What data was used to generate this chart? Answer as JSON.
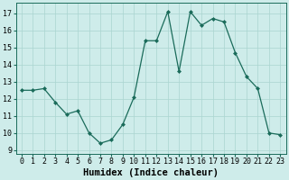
{
  "x": [
    0,
    1,
    2,
    3,
    4,
    5,
    6,
    7,
    8,
    9,
    10,
    11,
    12,
    13,
    14,
    15,
    16,
    17,
    18,
    19,
    20,
    21,
    22,
    23
  ],
  "y": [
    12.5,
    12.5,
    12.6,
    11.8,
    11.1,
    11.3,
    10.0,
    9.4,
    9.6,
    10.5,
    12.1,
    15.4,
    15.4,
    17.1,
    13.6,
    17.1,
    16.3,
    16.7,
    16.5,
    14.7,
    13.3,
    12.6,
    10.0,
    9.9
  ],
  "line_color": "#1a6b5a",
  "marker": "D",
  "marker_size": 2.0,
  "bg_color": "#ceecea",
  "grid_color": "#aad4d0",
  "xlabel": "Humidex (Indice chaleur)",
  "ylim": [
    8.8,
    17.6
  ],
  "xlim": [
    -0.5,
    23.5
  ],
  "yticks": [
    9,
    10,
    11,
    12,
    13,
    14,
    15,
    16,
    17
  ],
  "xticks": [
    0,
    1,
    2,
    3,
    4,
    5,
    6,
    7,
    8,
    9,
    10,
    11,
    12,
    13,
    14,
    15,
    16,
    17,
    18,
    19,
    20,
    21,
    22,
    23
  ],
  "tick_fontsize": 6,
  "xlabel_fontsize": 7.5,
  "linewidth": 0.9
}
